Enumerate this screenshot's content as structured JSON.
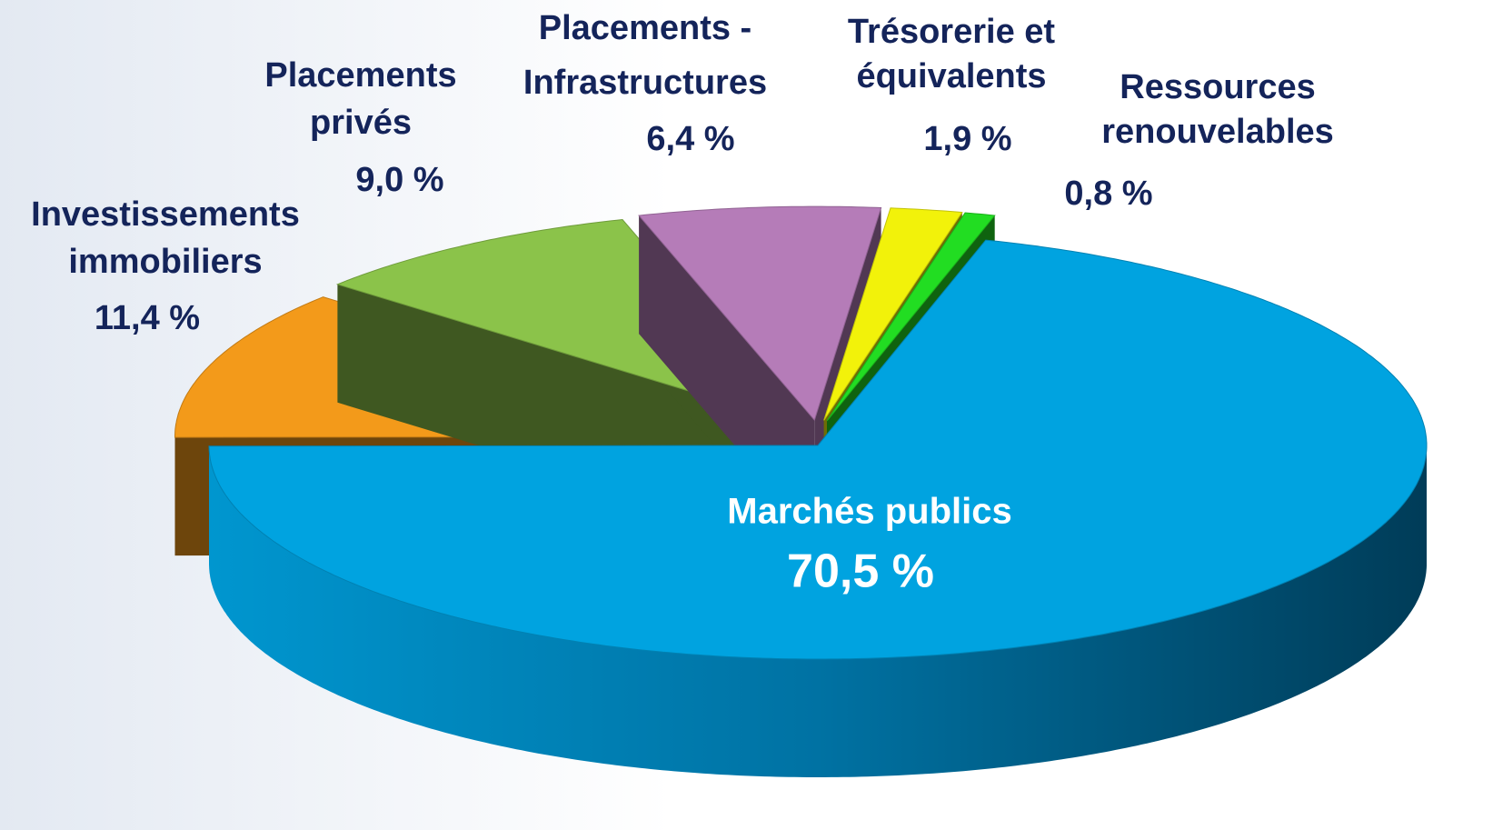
{
  "chart_data": {
    "type": "pie3d",
    "categories": [
      [
        "Marchés publics"
      ],
      [
        "Investissements",
        "immobiliers"
      ],
      [
        "Placements",
        "privés"
      ],
      [
        "Placements -",
        "Infrastructures"
      ],
      [
        "Trésorerie et",
        "équivalents"
      ],
      [
        "Ressources",
        "renouvelables"
      ]
    ],
    "values": [
      70.5,
      11.4,
      9.0,
      6.4,
      1.9,
      0.8
    ],
    "value_labels": [
      "70,5 %",
      "11,4 %",
      "9,0 %",
      "6,4 %",
      "1,9 %",
      "0,8 %"
    ],
    "colors": [
      "#00a3e0",
      "#f39a1a",
      "#8bc34a",
      "#b57cb8",
      "#f2f20a",
      "#22dd22"
    ]
  }
}
